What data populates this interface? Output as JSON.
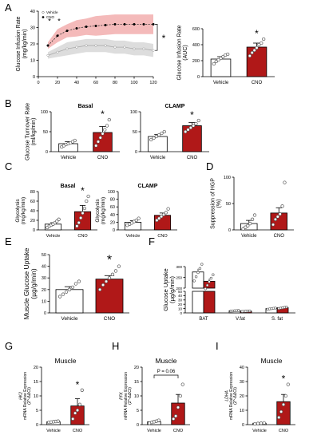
{
  "panels": {
    "A": {
      "letter": "A"
    },
    "B": {
      "letter": "B"
    },
    "C": {
      "letter": "C"
    },
    "D": {
      "letter": "D"
    },
    "E": {
      "letter": "E"
    },
    "F": {
      "letter": "F"
    },
    "G": {
      "letter": "G"
    },
    "H": {
      "letter": "H"
    },
    "I": {
      "letter": "I"
    }
  },
  "colors": {
    "vehicle": "#ffffff",
    "cno": "#b01818",
    "cno_band": "#f3b3b3",
    "vehicle_band": "#d9d9d9"
  },
  "chart_data": [
    {
      "id": "A-line",
      "type": "line",
      "ylabel": "Glucose Infusion Rate\n(mg/kg/min)",
      "xlabel": "",
      "ylim": [
        0,
        40
      ],
      "yticks": [
        "0",
        "10",
        "20",
        "30",
        "40"
      ],
      "xlim": [
        0,
        120
      ],
      "xticks": [
        "0",
        "20",
        "40",
        "60",
        "80",
        "100",
        "120"
      ],
      "legend": [
        "Vehicle",
        "CNO"
      ],
      "legend_position": "top-left",
      "annotations": [
        "*",
        "*",
        "*"
      ],
      "x": [
        10,
        20,
        30,
        40,
        50,
        60,
        70,
        80,
        90,
        100,
        110,
        120
      ],
      "series": [
        {
          "name": "Vehicle",
          "values": [
            13,
            15,
            17,
            18,
            19,
            19,
            19,
            18,
            18,
            17,
            17,
            16
          ],
          "sem": [
            2,
            3,
            4,
            4,
            4,
            4,
            4,
            4,
            4,
            4,
            4,
            4
          ]
        },
        {
          "name": "CNO",
          "values": [
            19,
            25,
            28,
            29.5,
            30.5,
            31,
            31.5,
            32,
            32,
            32,
            32,
            32
          ],
          "sem": [
            2,
            4,
            4,
            5,
            5,
            6,
            6,
            6,
            6,
            6,
            6,
            6
          ]
        }
      ]
    },
    {
      "id": "A-bar",
      "type": "bar",
      "ylabel": "Glucose Infusion Rate\n(AUC)",
      "ylim": [
        0,
        600
      ],
      "yticks": [
        "0",
        "200",
        "400",
        "600"
      ],
      "categories": [
        "Vehicle",
        "CNO"
      ],
      "values": [
        220,
        370
      ],
      "sem": [
        30,
        50
      ],
      "annotation": "*",
      "points": [
        [
          160,
          190,
          210,
          230,
          250,
          270,
          280
        ],
        [
          260,
          300,
          330,
          360,
          400,
          420,
          470
        ]
      ]
    },
    {
      "id": "B-basal",
      "type": "bar",
      "title": "Basal",
      "ylabel": "Glucose Turnover Rate\n(ml/kg/min)",
      "ylim": [
        0,
        100
      ],
      "yticks": [
        "0",
        "50",
        "100"
      ],
      "categories": [
        "Vehicle",
        "CNO"
      ],
      "values": [
        20,
        48
      ],
      "sem": [
        5,
        15
      ],
      "annotation": "*",
      "points": [
        [
          12,
          15,
          18,
          20,
          22,
          25,
          28
        ],
        [
          15,
          25,
          35,
          45,
          55,
          65,
          80
        ]
      ]
    },
    {
      "id": "B-clamp",
      "type": "bar",
      "title": "CLAMP",
      "ylabel": "",
      "ylim": [
        0,
        100
      ],
      "yticks": [
        "0",
        "50",
        "100"
      ],
      "categories": [
        "Vehicle",
        "CNO"
      ],
      "values": [
        38,
        65
      ],
      "sem": [
        5,
        8
      ],
      "annotation": "*",
      "points": [
        [
          30,
          34,
          38,
          42,
          46,
          50
        ],
        [
          50,
          55,
          60,
          65,
          70,
          78
        ]
      ]
    },
    {
      "id": "C-basal",
      "type": "bar",
      "title": "Basal",
      "ylabel": "Glycolysis\n(mg/kg/min)",
      "ylim": [
        0,
        80
      ],
      "yticks": [
        "0",
        "20",
        "40",
        "60",
        "80"
      ],
      "categories": [
        "Vehicle",
        "CNO"
      ],
      "values": [
        12,
        38
      ],
      "sem": [
        3,
        13
      ],
      "annotation": "*",
      "points": [
        [
          5,
          8,
          10,
          12,
          15,
          18,
          22
        ],
        [
          8,
          15,
          25,
          35,
          45,
          60,
          70
        ]
      ]
    },
    {
      "id": "C-clamp",
      "type": "bar",
      "title": "CLAMP",
      "ylabel": "Glycolysis\n(mg/kg/min)",
      "ylim": [
        0,
        100
      ],
      "yticks": [
        "0",
        "20",
        "40",
        "60",
        "80",
        "100"
      ],
      "categories": [
        "Vehicle",
        "CNO"
      ],
      "values": [
        20,
        38
      ],
      "sem": [
        4,
        6
      ],
      "points": [
        [
          12,
          15,
          18,
          22,
          25,
          30
        ],
        [
          25,
          30,
          35,
          40,
          45,
          55
        ]
      ]
    },
    {
      "id": "D",
      "type": "bar",
      "ylabel": "Suppression of HGP\n(%)",
      "ylim": [
        0,
        100
      ],
      "yticks": [
        "0",
        "50",
        "100"
      ],
      "categories": [
        "Vehicle",
        "CNO"
      ],
      "values": [
        12,
        32
      ],
      "sem": [
        6,
        10
      ],
      "points": [
        [
          2,
          5,
          8,
          12,
          20,
          28
        ],
        [
          10,
          20,
          25,
          30,
          45,
          90
        ]
      ]
    },
    {
      "id": "E",
      "type": "bar",
      "ylabel": "Muscle Glucose Uptake\n(µg/g/min)",
      "ylim": [
        0,
        50
      ],
      "yticks": [
        "0",
        "10",
        "20",
        "30",
        "40",
        "50"
      ],
      "categories": [
        "Vehicle",
        "CNO"
      ],
      "values": [
        20,
        29
      ],
      "sem": [
        2.5,
        3
      ],
      "annotation": "*",
      "points": [
        [
          14,
          16,
          18,
          20,
          22,
          25,
          27
        ],
        [
          20,
          24,
          27,
          30,
          33,
          36,
          40
        ]
      ]
    },
    {
      "id": "F",
      "type": "bar",
      "ylabel": "Glucose Uptake\n(µg/g/min)",
      "ylim": [
        0,
        300
      ],
      "yticks": [
        "0",
        "10",
        "20",
        "30",
        "40",
        "50",
        "200",
        "250",
        "300"
      ],
      "axis_break": [
        50,
        200
      ],
      "categories": [
        "BAT",
        "V.fat",
        "S. fat"
      ],
      "series": [
        {
          "name": "Vehicle",
          "values": [
            275,
            5,
            10
          ],
          "sem": [
            15,
            1,
            2
          ]
        },
        {
          "name": "CNO",
          "values": [
            232,
            4,
            12
          ],
          "sem": [
            12,
            1,
            3
          ]
        }
      ]
    },
    {
      "id": "G",
      "type": "bar",
      "title": "Muscle",
      "ylabel": "HK2\nmRNA Relative Expression\n(2^-ΔΔCt)",
      "ylim": [
        0,
        20
      ],
      "yticks": [
        "0",
        "5",
        "10",
        "15",
        "20"
      ],
      "categories": [
        "Vehicle",
        "CNO"
      ],
      "values": [
        1,
        6.5
      ],
      "sem": [
        0.2,
        2.5
      ],
      "annotation": "*",
      "points": [
        [
          0.8,
          0.9,
          1.0,
          1.1,
          1.2
        ],
        [
          2,
          4,
          5,
          7,
          12
        ]
      ]
    },
    {
      "id": "H",
      "type": "bar",
      "title": "Muscle",
      "ylabel": "PFK\nmRNA Relative Expression\n(2^-ΔΔCt)",
      "ylim": [
        0,
        20
      ],
      "yticks": [
        "0",
        "5",
        "10",
        "15",
        "20"
      ],
      "categories": [
        "Vehicle",
        "CNO"
      ],
      "values": [
        1,
        7.5
      ],
      "sem": [
        0.3,
        3
      ],
      "annotation": "P = 0.06",
      "points": [
        [
          0.5,
          0.8,
          1.0,
          1.2,
          1.5
        ],
        [
          2,
          3,
          6,
          10,
          14
        ]
      ]
    },
    {
      "id": "I",
      "type": "bar",
      "title": "Muscle",
      "ylabel": "LDHA\nmRNA Relative Expression\n(2^-ΔΔCt)",
      "ylim": [
        0,
        40
      ],
      "yticks": [
        "0",
        "10",
        "20",
        "30",
        "40"
      ],
      "categories": [
        "Vehicle",
        "CNO"
      ],
      "values": [
        1,
        16
      ],
      "sem": [
        0.3,
        5
      ],
      "annotation": "*",
      "points": [
        [
          0.5,
          0.8,
          1.0,
          1.2
        ],
        [
          5,
          9,
          14,
          20,
          28
        ]
      ]
    }
  ]
}
